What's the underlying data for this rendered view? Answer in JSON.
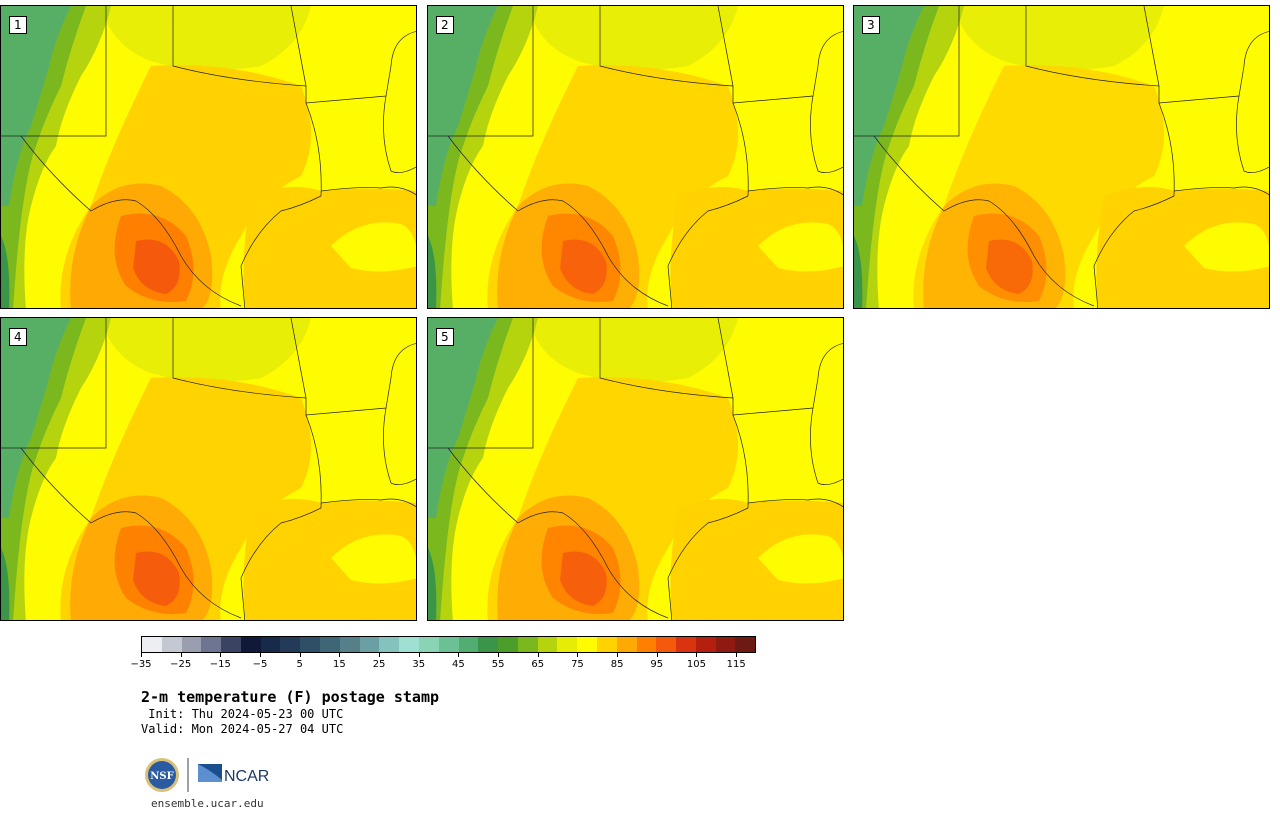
{
  "panels": [
    {
      "label": "1",
      "hot": 1.0
    },
    {
      "label": "2",
      "hot": 0.75
    },
    {
      "label": "3",
      "hot": 0.55
    },
    {
      "label": "4",
      "hot": 0.95
    },
    {
      "label": "5",
      "hot": 0.8
    }
  ],
  "colorbar": {
    "colors": [
      "#eceef2",
      "#c4c8d2",
      "#9a9fb0",
      "#6e7590",
      "#3a4462",
      "#101a38",
      "#172a4a",
      "#233b58",
      "#2f4f66",
      "#3d6677",
      "#55808a",
      "#6aa0a3",
      "#84c2bd",
      "#9ee0d2",
      "#88d4b4",
      "#6cc194",
      "#51ad72",
      "#3a9548",
      "#4c9e2a",
      "#7bb81e",
      "#b5d40e",
      "#e6ec06",
      "#fffb00",
      "#ffd200",
      "#ffa905",
      "#ff8000",
      "#f55a0c",
      "#d9330f",
      "#b51f10",
      "#8e1a12",
      "#6e1a14"
    ],
    "ticks": [
      "−35",
      "−25",
      "−15",
      "−5",
      "5",
      "15",
      "25",
      "35",
      "45",
      "55",
      "65",
      "75",
      "85",
      "95",
      "105",
      "115"
    ]
  },
  "title": "2-m temperature (F) postage stamp",
  "init": " Init: Thu 2024-05-23 00 UTC",
  "valid": "Valid: Mon 2024-05-27 04 UTC",
  "logo": {
    "nsf": "NSF",
    "ncar": "NCAR"
  },
  "site": "ensemble.ucar.edu"
}
